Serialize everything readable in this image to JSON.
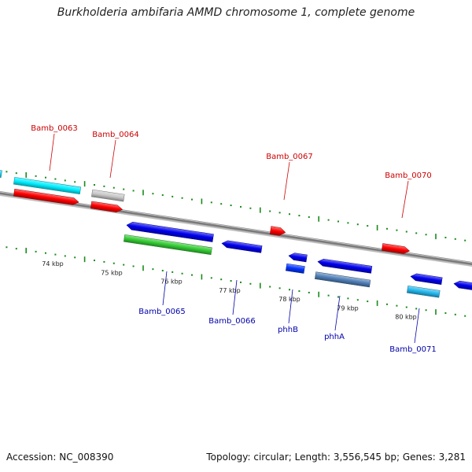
{
  "title": "Burkholderia ambifaria AMMD chromosome 1, complete genome",
  "footer": {
    "accession": "Accession: NC_008390",
    "summary": "Topology: circular; Length: 3,556,545 bp; Genes: 3,281"
  },
  "colors": {
    "backbone": "#7a7a7a",
    "tick": "#1a8a1a",
    "label_forward": "#cc0000",
    "label_reverse": "#0000aa"
  },
  "scale_ticks": [
    {
      "label": "74 kbp"
    },
    {
      "label": "75 kbp"
    },
    {
      "label": "76 kbp"
    },
    {
      "label": "77 kbp"
    },
    {
      "label": "78 kbp"
    },
    {
      "label": "79 kbp"
    },
    {
      "label": "80 kbp"
    }
  ],
  "genes": [
    {
      "name": "Bamb_0063",
      "strand": "+",
      "color": "#ff0000",
      "labeled": true
    },
    {
      "name": "Bamb_0064",
      "strand": "+",
      "color": "#ff0000",
      "labeled": true
    },
    {
      "name": "Bamb_0067",
      "strand": "+",
      "color": "#ff0000",
      "labeled": true
    },
    {
      "name": "Bamb_0070",
      "strand": "+",
      "color": "#ff0000",
      "labeled": true
    },
    {
      "name": "Bamb_0065",
      "strand": "-",
      "color": "#0000ee",
      "labeled": true
    },
    {
      "name": "Bamb_0066",
      "strand": "-",
      "color": "#0000ee",
      "labeled": true
    },
    {
      "name": "phhB",
      "strand": "-",
      "color": "#0000ee",
      "labeled": true
    },
    {
      "name": "phhA",
      "strand": "-",
      "color": "#0000ee",
      "labeled": true
    },
    {
      "name": "Bamb_0071",
      "strand": "-",
      "color": "#0000ee",
      "labeled": true
    }
  ]
}
